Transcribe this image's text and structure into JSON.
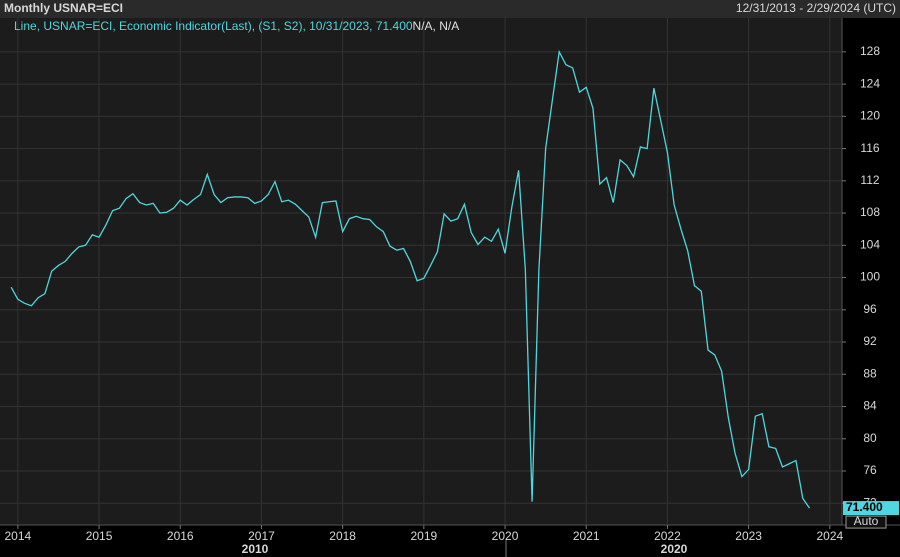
{
  "chart_data": {
    "type": "line",
    "title": "Monthly USNAR=ECI",
    "date_range": "12/31/2013 - 2/29/2024 (UTC)",
    "legend_extra": "N/A, N/A",
    "last_value_label": "71.400",
    "scale_mode": "Auto",
    "era_labels": [
      "2010",
      "2020"
    ],
    "x": [
      2013.917,
      2014.0,
      2014.083,
      2014.167,
      2014.25,
      2014.333,
      2014.417,
      2014.5,
      2014.583,
      2014.667,
      2014.75,
      2014.833,
      2014.917,
      2015.0,
      2015.083,
      2015.167,
      2015.25,
      2015.333,
      2015.417,
      2015.5,
      2015.583,
      2015.667,
      2015.75,
      2015.833,
      2015.917,
      2016.0,
      2016.083,
      2016.167,
      2016.25,
      2016.333,
      2016.417,
      2016.5,
      2016.583,
      2016.667,
      2016.75,
      2016.833,
      2016.917,
      2017.0,
      2017.083,
      2017.167,
      2017.25,
      2017.333,
      2017.417,
      2017.5,
      2017.583,
      2017.667,
      2017.75,
      2017.833,
      2017.917,
      2018.0,
      2018.083,
      2018.167,
      2018.25,
      2018.333,
      2018.417,
      2018.5,
      2018.583,
      2018.667,
      2018.75,
      2018.833,
      2018.917,
      2019.0,
      2019.083,
      2019.167,
      2019.25,
      2019.333,
      2019.417,
      2019.5,
      2019.583,
      2019.667,
      2019.75,
      2019.833,
      2019.917,
      2020.0,
      2020.083,
      2020.167,
      2020.25,
      2020.333,
      2020.417,
      2020.5,
      2020.583,
      2020.667,
      2020.75,
      2020.833,
      2020.917,
      2021.0,
      2021.083,
      2021.167,
      2021.25,
      2021.333,
      2021.417,
      2021.5,
      2021.583,
      2021.667,
      2021.75,
      2021.833,
      2021.917,
      2022.0,
      2022.083,
      2022.167,
      2022.25,
      2022.333,
      2022.417,
      2022.5,
      2022.583,
      2022.667,
      2022.75,
      2022.833,
      2022.917,
      2023.0,
      2023.083,
      2023.167,
      2023.25,
      2023.333,
      2023.417,
      2023.5,
      2023.583,
      2023.667,
      2023.75
    ],
    "series": [
      {
        "name": "Line, USNAR=ECI, Economic Indicator(Last), (S1, S2), 10/31/2023, 71.400",
        "color": "#4fd6de",
        "values": [
          98.8,
          97.3,
          96.8,
          96.5,
          97.5,
          98,
          100.8,
          101.5,
          102,
          103,
          103.8,
          104,
          105.3,
          105,
          106.5,
          108.3,
          108.6,
          109.8,
          110.4,
          109.3,
          109,
          109.2,
          108,
          108.1,
          108.6,
          109.6,
          109,
          109.7,
          110.3,
          112.8,
          110.3,
          109.3,
          109.9,
          110,
          110,
          109.9,
          109.2,
          109.5,
          110.3,
          111.9,
          109.4,
          109.6,
          109.1,
          108.3,
          107.5,
          105,
          109.3,
          109.4,
          109.5,
          105.7,
          107.3,
          107.6,
          107.3,
          107.2,
          106.3,
          105.7,
          103.9,
          103.4,
          103.6,
          102,
          99.6,
          99.9,
          101.5,
          103.2,
          107.9,
          107,
          107.3,
          109.1,
          105.6,
          104.1,
          105,
          104.5,
          106,
          103,
          108.7,
          113.3,
          101,
          72.2,
          101,
          116,
          122,
          128,
          126.4,
          126,
          123,
          123.6,
          121,
          111.6,
          112.4,
          109.3,
          114.6,
          113.9,
          112.5,
          116.2,
          116,
          123.5,
          119.5,
          115.5,
          109,
          106,
          103.3,
          99,
          98.3,
          91,
          90.4,
          88.4,
          82.6,
          78.2,
          75.3,
          76.2,
          82.8,
          83.1,
          79,
          78.8,
          76.5,
          76.9,
          77.3,
          72.6,
          71.4
        ]
      }
    ],
    "xlim": [
      2013.78,
      2024.15
    ],
    "ylim": [
      69.3,
      132.2
    ],
    "xticks": [
      2014,
      2015,
      2016,
      2017,
      2018,
      2019,
      2020,
      2021,
      2022,
      2023,
      2024
    ],
    "yticks": [
      72,
      76,
      80,
      84,
      88,
      92,
      96,
      100,
      104,
      108,
      112,
      116,
      120,
      124,
      128
    ],
    "grid": true
  }
}
